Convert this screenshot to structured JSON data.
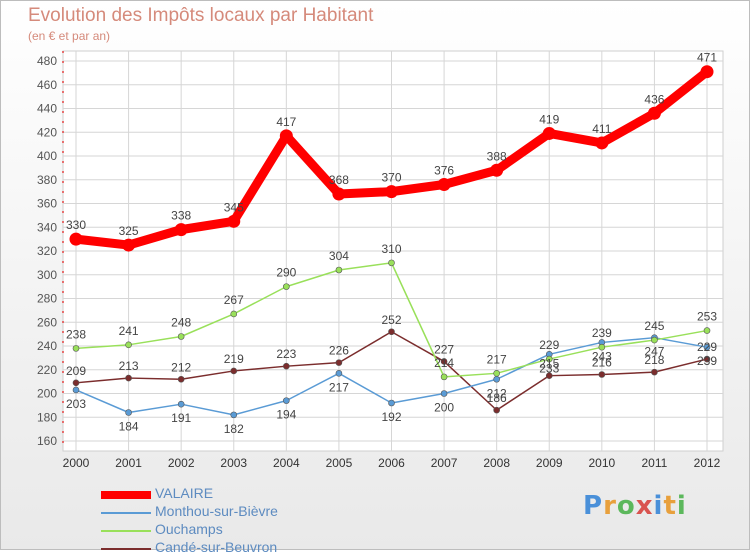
{
  "page": {
    "title": "Evolution des Impôts locaux par Habitant",
    "subtitle": "(en € et par an)",
    "logo_text": "Proxiti"
  },
  "colors": {
    "title": "#d58a7b",
    "axis_text": "#555555",
    "grid": "#d6d6d6",
    "legend_text": "#5d8bc0"
  },
  "chart_data": {
    "type": "line",
    "title": "Evolution des Impôts locaux par Habitant",
    "subtitle": "(en € et par an)",
    "x": [
      "2000",
      "2001",
      "2002",
      "2003",
      "2004",
      "2005",
      "2006",
      "2007",
      "2008",
      "2009",
      "2010",
      "2011",
      "2012"
    ],
    "ylim": [
      160,
      480
    ],
    "yticks": [
      160,
      180,
      200,
      220,
      240,
      260,
      280,
      300,
      320,
      340,
      360,
      380,
      400,
      420,
      440,
      460,
      480
    ],
    "grid": true,
    "legend_position": "bottom-left",
    "series": [
      {
        "name": "VALAIRE",
        "color": "#ff0000",
        "values": [
          330,
          325,
          338,
          345,
          417,
          368,
          370,
          376,
          388,
          419,
          411,
          436,
          471
        ]
      },
      {
        "name": "Monthou-sur-Bièvre",
        "color": "#5a9bd5",
        "values": [
          203,
          184,
          191,
          182,
          194,
          217,
          192,
          200,
          212,
          233,
          243,
          247,
          239
        ]
      },
      {
        "name": "Ouchamps",
        "color": "#99e05a",
        "values": [
          238,
          241,
          248,
          267,
          290,
          304,
          310,
          214,
          217,
          229,
          239,
          245,
          253
        ]
      },
      {
        "name": "Candé-sur-Beuvron",
        "color": "#7b2d2d",
        "values": [
          209,
          213,
          212,
          219,
          223,
          226,
          252,
          227,
          186,
          215,
          216,
          218,
          229
        ]
      }
    ]
  }
}
